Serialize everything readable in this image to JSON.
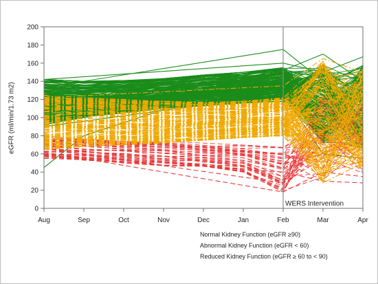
{
  "chart_data": {
    "type": "line",
    "title": "",
    "xlabel": "",
    "ylabel": "eGFR (ml/min/1.73 m2)",
    "categories": [
      "Aug",
      "Sep",
      "Oct",
      "Nov",
      "Dec",
      "Jan",
      "Feb",
      "Mar",
      "Apr"
    ],
    "ylim": [
      0,
      200
    ],
    "yticks": [
      0,
      20,
      40,
      60,
      80,
      100,
      120,
      140,
      160,
      180,
      200
    ],
    "grid": false,
    "legend_position": "bottom-center",
    "annotation": {
      "label": "WERS Intervention",
      "x": "Feb"
    },
    "series": [
      {
        "name": "Normal Kidney Function (eGFR ≥90)",
        "color": "#1a8c1a",
        "style": "solid",
        "band": [
          [
            92,
            142
          ],
          [
            100,
            140
          ],
          [
            105,
            141
          ],
          [
            110,
            143
          ],
          [
            113,
            147
          ],
          [
            116,
            150
          ],
          [
            118,
            155
          ],
          [
            72,
            160
          ],
          [
            65,
            158
          ]
        ],
        "highlights": [
          {
            "x": [
              "Aug",
              "Feb",
              "Mar",
              "Apr"
            ],
            "y": [
              133,
              175,
              140,
              145
            ]
          },
          {
            "x": [
              "Aug",
              "Sep",
              "Feb",
              "Mar",
              "Apr"
            ],
            "y": [
              45,
              80,
              152,
              170,
              140
            ]
          },
          {
            "x": [
              "Aug",
              "Feb",
              "Mar",
              "Apr"
            ],
            "y": [
              142,
              160,
              150,
              167
            ]
          },
          {
            "x": [
              "Aug",
              "Feb",
              "Mar",
              "Apr"
            ],
            "y": [
              90,
              126,
              60,
              55
            ]
          }
        ]
      },
      {
        "name": "Abnormal Kidney Function (eGFR < 60)",
        "color": "#e83a3a",
        "style": "dashed",
        "band": [
          [
            55,
            80
          ],
          [
            53,
            78
          ],
          [
            50,
            76
          ],
          [
            47,
            74
          ],
          [
            44,
            72
          ],
          [
            40,
            70
          ],
          [
            18,
            68
          ],
          [
            30,
            125
          ],
          [
            35,
            115
          ]
        ],
        "highlights": [
          {
            "x": [
              "Aug",
              "Feb",
              "Mar",
              "Apr"
            ],
            "y": [
              62,
              18,
              40,
              35
            ]
          },
          {
            "x": [
              "Aug",
              "Feb",
              "Mar",
              "Apr"
            ],
            "y": [
              66,
              28,
              110,
              90
            ]
          },
          {
            "x": [
              "Aug",
              "Feb",
              "Mar",
              "Apr"
            ],
            "y": [
              60,
              40,
              30,
              28
            ]
          }
        ]
      },
      {
        "name": "Reduced Kidney Function (eGFR ≥ 60 to < 90)",
        "color": "#f0a800",
        "style": "dashdot",
        "band": [
          [
            65,
            125
          ],
          [
            68,
            122
          ],
          [
            70,
            120
          ],
          [
            72,
            118
          ],
          [
            75,
            117
          ],
          [
            78,
            118
          ],
          [
            80,
            122
          ],
          [
            28,
            165
          ],
          [
            40,
            155
          ]
        ],
        "highlights": [
          {
            "x": [
              "Aug",
              "Feb",
              "Mar",
              "Apr"
            ],
            "y": [
              122,
              135,
              165,
              150
            ]
          },
          {
            "x": [
              "Aug",
              "Feb",
              "Mar",
              "Apr"
            ],
            "y": [
              72,
              85,
              28,
              50
            ]
          }
        ]
      }
    ]
  }
}
